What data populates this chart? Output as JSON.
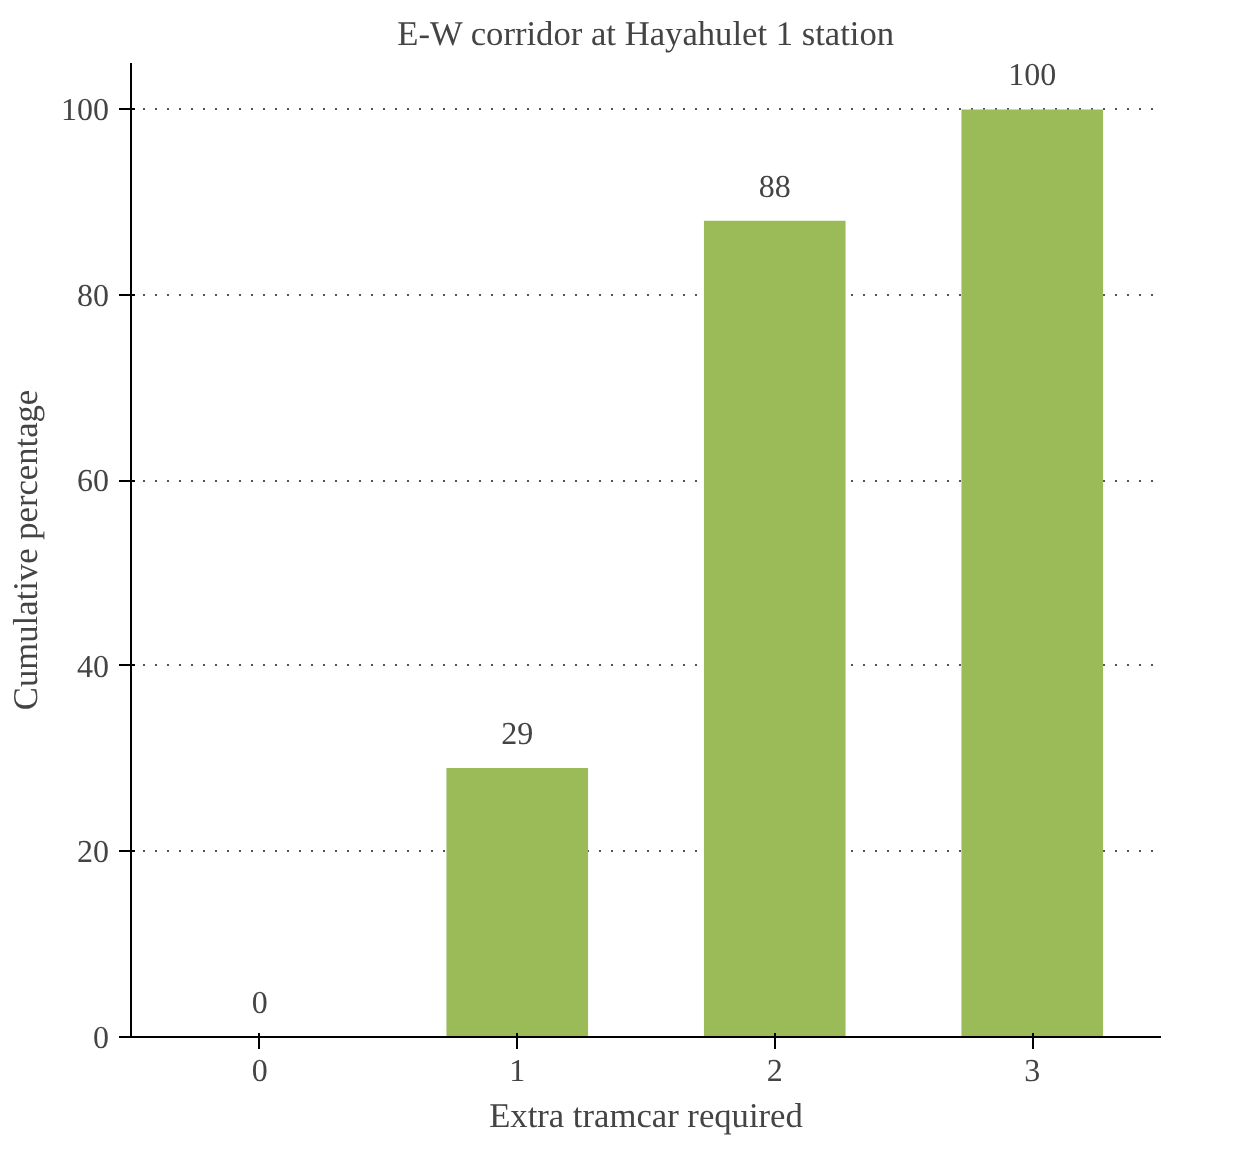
{
  "chart_data": {
    "type": "bar",
    "title": "E-W corridor at Hayahulet 1 station",
    "xlabel": "Extra tramcar required",
    "ylabel": "Cumulative percentage",
    "categories": [
      "0",
      "1",
      "2",
      "3"
    ],
    "values": [
      0,
      29,
      88,
      100
    ],
    "color": "#9bbb59",
    "ylim": [
      0,
      105
    ],
    "yticks": [
      0,
      20,
      40,
      60,
      80,
      100
    ],
    "grid": "y",
    "data_labels": true
  }
}
